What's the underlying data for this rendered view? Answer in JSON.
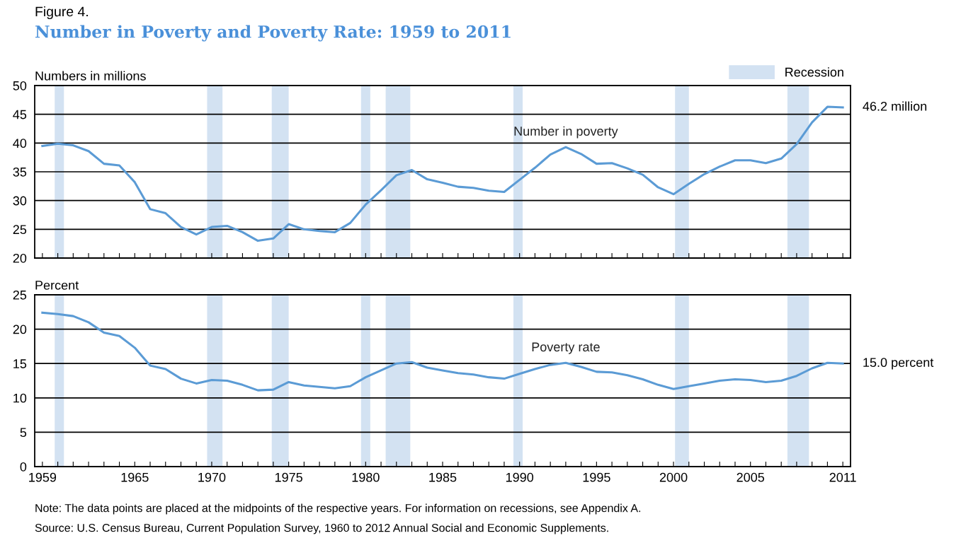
{
  "chart_data": [
    {
      "type": "line",
      "title": "Figure 4.",
      "subtitle": "Number in Poverty and Poverty Rate: 1959 to 2011",
      "ylabel": "Numbers in millions",
      "x": [
        1959,
        1960,
        1961,
        1962,
        1963,
        1964,
        1965,
        1966,
        1967,
        1968,
        1969,
        1970,
        1971,
        1972,
        1973,
        1974,
        1975,
        1976,
        1977,
        1978,
        1979,
        1980,
        1981,
        1982,
        1983,
        1984,
        1985,
        1986,
        1987,
        1988,
        1989,
        1990,
        1991,
        1992,
        1993,
        1994,
        1995,
        1996,
        1997,
        1998,
        1999,
        2000,
        2001,
        2002,
        2003,
        2004,
        2005,
        2006,
        2007,
        2008,
        2009,
        2010,
        2011
      ],
      "series": [
        {
          "name": "Number in poverty",
          "color": "#5b9bd5",
          "values": [
            39.5,
            39.9,
            39.6,
            38.6,
            36.4,
            36.1,
            33.2,
            28.5,
            27.8,
            25.4,
            24.1,
            25.4,
            25.6,
            24.5,
            23.0,
            23.4,
            25.9,
            25.0,
            24.7,
            24.5,
            26.1,
            29.3,
            31.8,
            34.4,
            35.3,
            33.7,
            33.1,
            32.4,
            32.2,
            31.7,
            31.5,
            33.6,
            35.7,
            38.0,
            39.3,
            38.1,
            36.4,
            36.5,
            35.6,
            34.5,
            32.3,
            31.1,
            32.9,
            34.6,
            35.9,
            37.0,
            37.0,
            36.5,
            37.3,
            39.8,
            43.6,
            46.3,
            46.2
          ]
        }
      ],
      "xlim": [
        1958.5,
        2011.5
      ],
      "xticks": [
        1959,
        {
          "value": 1960,
          "label": null
        },
        {
          "value": 1961,
          "label": null
        },
        {
          "value": 1962,
          "label": null
        },
        {
          "value": 1963,
          "label": null
        },
        {
          "value": 1964,
          "label": null
        },
        1965,
        {
          "value": 1966,
          "label": null
        },
        {
          "value": 1967,
          "label": null
        },
        {
          "value": 1968,
          "label": null
        },
        {
          "value": 1969,
          "label": null
        },
        1970,
        {
          "value": 1971,
          "label": null
        },
        {
          "value": 1972,
          "label": null
        },
        {
          "value": 1973,
          "label": null
        },
        {
          "value": 1974,
          "label": null
        },
        1975,
        {
          "value": 1976,
          "label": null
        },
        {
          "value": 1977,
          "label": null
        },
        {
          "value": 1978,
          "label": null
        },
        {
          "value": 1979,
          "label": null
        },
        1980,
        {
          "value": 1981,
          "label": null
        },
        {
          "value": 1982,
          "label": null
        },
        {
          "value": 1983,
          "label": null
        },
        {
          "value": 1984,
          "label": null
        },
        1985,
        {
          "value": 1986,
          "label": null
        },
        {
          "value": 1987,
          "label": null
        },
        {
          "value": 1988,
          "label": null
        },
        {
          "value": 1989,
          "label": null
        },
        1990,
        {
          "value": 1991,
          "label": null
        },
        {
          "value": 1992,
          "label": null
        },
        {
          "value": 1993,
          "label": null
        },
        {
          "value": 1994,
          "label": null
        },
        1995,
        {
          "value": 1996,
          "label": null
        },
        {
          "value": 1997,
          "label": null
        },
        {
          "value": 1998,
          "label": null
        },
        {
          "value": 1999,
          "label": null
        },
        2000,
        {
          "value": 2001,
          "label": null
        },
        {
          "value": 2002,
          "label": null
        },
        {
          "value": 2003,
          "label": null
        },
        {
          "value": 2004,
          "label": null
        },
        2005,
        {
          "value": 2006,
          "label": null
        },
        {
          "value": 2007,
          "label": null
        },
        {
          "value": 2008,
          "label": null
        },
        {
          "value": 2009,
          "label": null
        },
        {
          "value": 2010,
          "label": null
        },
        2011
      ],
      "ylim": [
        20,
        50
      ],
      "yticks": [
        20,
        25,
        30,
        35,
        40,
        45,
        50
      ],
      "tick_labels": "y",
      "grid": "y",
      "legend": "top right",
      "marker": "none",
      "line_style": "solid",
      "bands": [
        {
          "axis": "x",
          "from": 1959.8,
          "to": 1960.4,
          "label": "Recession",
          "color": "#d3e2f2"
        },
        {
          "axis": "x",
          "from": 1969.7,
          "to": 1970.7,
          "color": "#d3e2f2"
        },
        {
          "axis": "x",
          "from": 1973.9,
          "to": 1975.0,
          "color": "#d3e2f2"
        },
        {
          "axis": "x",
          "from": 1979.7,
          "to": 1980.3,
          "color": "#d3e2f2"
        },
        {
          "axis": "x",
          "from": 1981.3,
          "to": 1982.9,
          "color": "#d3e2f2"
        },
        {
          "axis": "x",
          "from": 1989.6,
          "to": 1990.2,
          "color": "#d3e2f2"
        },
        {
          "axis": "x",
          "from": 2000.1,
          "to": 2001.0,
          "color": "#d3e2f2"
        },
        {
          "axis": "x",
          "from": 2007.4,
          "to": 2008.8,
          "color": "#d3e2f2"
        }
      ],
      "annotations": [
        {
          "text": "46.2 million",
          "x": 2011,
          "y": 46.2
        }
      ]
    },
    {
      "type": "line",
      "ylabel": "Percent",
      "x": [
        1959,
        1960,
        1961,
        1962,
        1963,
        1964,
        1965,
        1966,
        1967,
        1968,
        1969,
        1970,
        1971,
        1972,
        1973,
        1974,
        1975,
        1976,
        1977,
        1978,
        1979,
        1980,
        1981,
        1982,
        1983,
        1984,
        1985,
        1986,
        1987,
        1988,
        1989,
        1990,
        1991,
        1992,
        1993,
        1994,
        1995,
        1996,
        1997,
        1998,
        1999,
        2000,
        2001,
        2002,
        2003,
        2004,
        2005,
        2006,
        2007,
        2008,
        2009,
        2010,
        2011
      ],
      "series": [
        {
          "name": "Poverty rate",
          "color": "#5b9bd5",
          "values": [
            22.4,
            22.2,
            21.9,
            21.0,
            19.5,
            19.0,
            17.3,
            14.7,
            14.2,
            12.8,
            12.1,
            12.6,
            12.5,
            11.9,
            11.1,
            11.2,
            12.3,
            11.8,
            11.6,
            11.4,
            11.7,
            13.0,
            14.0,
            15.0,
            15.2,
            14.4,
            14.0,
            13.6,
            13.4,
            13.0,
            12.8,
            13.5,
            14.2,
            14.8,
            15.1,
            14.5,
            13.8,
            13.7,
            13.3,
            12.7,
            11.9,
            11.3,
            11.7,
            12.1,
            12.5,
            12.7,
            12.6,
            12.3,
            12.5,
            13.2,
            14.3,
            15.1,
            15.0
          ]
        }
      ],
      "xlim": [
        1958.5,
        2011.5
      ],
      "xticks": [
        1959,
        {
          "value": 1960,
          "label": null
        },
        {
          "value": 1961,
          "label": null
        },
        {
          "value": 1962,
          "label": null
        },
        {
          "value": 1963,
          "label": null
        },
        {
          "value": 1964,
          "label": null
        },
        1965,
        {
          "value": 1966,
          "label": null
        },
        {
          "value": 1967,
          "label": null
        },
        {
          "value": 1968,
          "label": null
        },
        {
          "value": 1969,
          "label": null
        },
        1970,
        {
          "value": 1971,
          "label": null
        },
        {
          "value": 1972,
          "label": null
        },
        {
          "value": 1973,
          "label": null
        },
        {
          "value": 1974,
          "label": null
        },
        1975,
        {
          "value": 1976,
          "label": null
        },
        {
          "value": 1977,
          "label": null
        },
        {
          "value": 1978,
          "label": null
        },
        {
          "value": 1979,
          "label": null
        },
        1980,
        {
          "value": 1981,
          "label": null
        },
        {
          "value": 1982,
          "label": null
        },
        {
          "value": 1983,
          "label": null
        },
        {
          "value": 1984,
          "label": null
        },
        1985,
        {
          "value": 1986,
          "label": null
        },
        {
          "value": 1987,
          "label": null
        },
        {
          "value": 1988,
          "label": null
        },
        {
          "value": 1989,
          "label": null
        },
        1990,
        {
          "value": 1991,
          "label": null
        },
        {
          "value": 1992,
          "label": null
        },
        {
          "value": 1993,
          "label": null
        },
        {
          "value": 1994,
          "label": null
        },
        1995,
        {
          "value": 1996,
          "label": null
        },
        {
          "value": 1997,
          "label": null
        },
        {
          "value": 1998,
          "label": null
        },
        {
          "value": 1999,
          "label": null
        },
        2000,
        {
          "value": 2001,
          "label": null
        },
        {
          "value": 2002,
          "label": null
        },
        {
          "value": 2003,
          "label": null
        },
        {
          "value": 2004,
          "label": null
        },
        2005,
        {
          "value": 2006,
          "label": null
        },
        {
          "value": 2007,
          "label": null
        },
        {
          "value": 2008,
          "label": null
        },
        {
          "value": 2009,
          "label": null
        },
        {
          "value": 2010,
          "label": null
        },
        2011
      ],
      "ylim": [
        0,
        25
      ],
      "yticks": [
        0,
        5,
        10,
        15,
        20,
        25
      ],
      "grid": "y",
      "marker": "none",
      "line_style": "solid",
      "bands": [
        {
          "axis": "x",
          "from": 1959.8,
          "to": 1960.4,
          "color": "#d3e2f2"
        },
        {
          "axis": "x",
          "from": 1969.7,
          "to": 1970.7,
          "color": "#d3e2f2"
        },
        {
          "axis": "x",
          "from": 1973.9,
          "to": 1975.0,
          "color": "#d3e2f2"
        },
        {
          "axis": "x",
          "from": 1979.7,
          "to": 1980.3,
          "color": "#d3e2f2"
        },
        {
          "axis": "x",
          "from": 1981.3,
          "to": 1982.9,
          "color": "#d3e2f2"
        },
        {
          "axis": "x",
          "from": 1989.6,
          "to": 1990.2,
          "color": "#d3e2f2"
        },
        {
          "axis": "x",
          "from": 2000.1,
          "to": 2001.0,
          "color": "#d3e2f2"
        },
        {
          "axis": "x",
          "from": 2007.4,
          "to": 2008.8,
          "color": "#d3e2f2"
        }
      ],
      "annotations": [
        {
          "text": "15.0 percent",
          "x": 2011,
          "y": 15.0
        },
        "Note: The data points are placed at the midpoints of the respective years. For information on recessions, see Appendix A.",
        "Source: U.S. Census Bureau, Current Population Survey, 1960 to 2012 Annual Social and Economic Supplements."
      ]
    }
  ]
}
